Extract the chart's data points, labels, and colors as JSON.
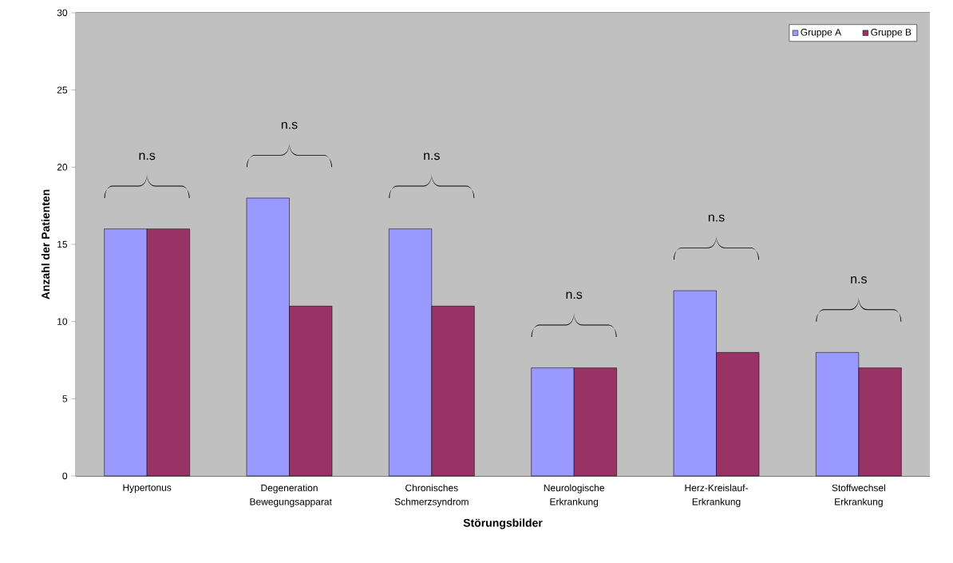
{
  "chart_data": {
    "type": "bar",
    "xlabel": "Störungsbilder",
    "ylabel": "Anzahl der Patienten",
    "categories": [
      "Hypertonus",
      "Degeneration Bewegungsapparat",
      "Chronisches Schmerzsyndrom",
      "Neurologische Erkrankung",
      "Herz-Kreislauf-Erkrankung",
      "Stoffwechsel Erkrankung"
    ],
    "series": [
      {
        "name": "Gruppe A",
        "color": "#9999ff",
        "values": [
          16,
          18,
          16,
          7,
          12,
          8
        ]
      },
      {
        "name": "Gruppe B",
        "color": "#993366",
        "values": [
          16,
          11,
          11,
          7,
          8,
          7
        ]
      }
    ],
    "ylim": [
      0,
      30
    ],
    "yticks": [
      0,
      5,
      10,
      15,
      20,
      25,
      30
    ],
    "grid": "y",
    "legend": "top right",
    "annotations": [
      "n.s",
      "n.s",
      "n.s",
      "n.s",
      "n.s",
      "n.s"
    ]
  }
}
